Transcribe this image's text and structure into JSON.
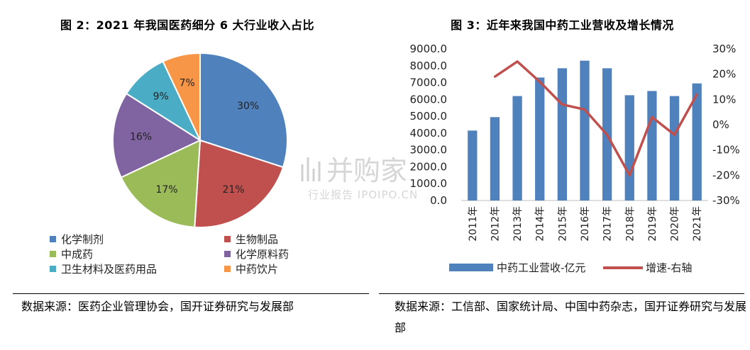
{
  "figures": {
    "left": {
      "title": "图 2：2021 年我国医药细分 6 大行业收入占比",
      "source": "数据来源：医药企业管理协会，国开证券研究与发展部"
    },
    "right": {
      "title": "图 3：近年来我国中药工业营收及增长情况",
      "source": "数据来源：工信部、国家统计局、中国中药杂志，国开证券研究与发展部"
    }
  },
  "watermark": {
    "main": "并购家",
    "sub": "行业报告 IPOIPO.CN"
  },
  "colors": {
    "blue": "#4f81bd",
    "red": "#c0504d",
    "green": "#9bbb59",
    "purple": "#8064a2",
    "teal": "#4bacc6",
    "orange": "#f79646",
    "line": "#c0504d"
  },
  "chart_data": [
    {
      "type": "pie",
      "title": "2021 年我国医药细分 6 大行业收入占比",
      "slices": [
        {
          "name": "化学制剂",
          "value": 30,
          "label": "30%",
          "color": "#4f81bd"
        },
        {
          "name": "生物制品",
          "value": 21,
          "label": "21%",
          "color": "#c0504d"
        },
        {
          "name": "中成药",
          "value": 17,
          "label": "17%",
          "color": "#9bbb59"
        },
        {
          "name": "化学原料药",
          "value": 16,
          "label": "16%",
          "color": "#8064a2"
        },
        {
          "name": "卫生材料及医药用品",
          "value": 9,
          "label": "9%",
          "color": "#4bacc6"
        },
        {
          "name": "中药饮片",
          "value": 7,
          "label": "7%",
          "color": "#f79646"
        }
      ],
      "legend": "bottom"
    },
    {
      "type": "bar",
      "title": "近年来我国中药工业营收及增长情况",
      "categories": [
        "2011年",
        "2012年",
        "2013年",
        "2014年",
        "2015年",
        "2016年",
        "2017年",
        "2018年",
        "2019年",
        "2020年",
        "2021年"
      ],
      "series": [
        {
          "name": "中药工业营收-亿元",
          "type": "bar",
          "axis": "left",
          "color": "#4f81bd",
          "values": [
            4150,
            4950,
            6200,
            7300,
            7850,
            8300,
            7850,
            6250,
            6500,
            6200,
            6950
          ]
        },
        {
          "name": "增速-右轴",
          "type": "line",
          "axis": "right",
          "color": "#c0504d",
          "values": [
            null,
            19,
            25,
            17,
            8,
            6,
            -4,
            -20,
            3,
            -4,
            12
          ]
        }
      ],
      "ylim": [
        0,
        9000
      ],
      "yticks": [
        "0.0",
        "1000.0",
        "2000.0",
        "3000.0",
        "4000.0",
        "5000.0",
        "6000.0",
        "7000.0",
        "8000.0",
        "9000.0"
      ],
      "y2lim": [
        -30,
        30
      ],
      "y2ticks": [
        "-30%",
        "-20%",
        "-10%",
        "0%",
        "10%",
        "20%",
        "30%"
      ],
      "legend": "bottom"
    }
  ]
}
